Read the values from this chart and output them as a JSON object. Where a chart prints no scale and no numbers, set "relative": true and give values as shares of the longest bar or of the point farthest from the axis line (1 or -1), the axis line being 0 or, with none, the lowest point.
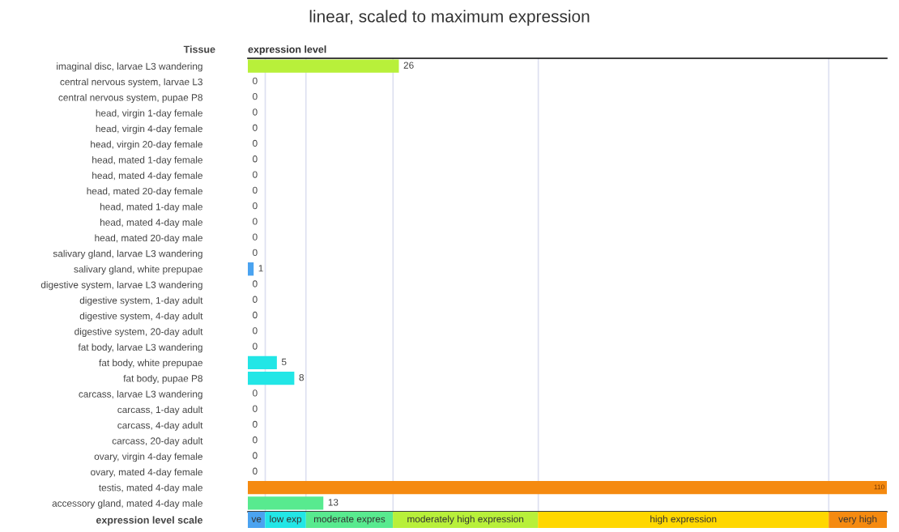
{
  "chart_data": [
    {
      "type": "bar",
      "orientation": "horizontal",
      "title": "linear, scaled to maximum expression",
      "annotations": [
        "Tissue",
        "expression level"
      ],
      "categories": [
        "imaginal disc, larvae L3 wandering",
        "central nervous system, larvae L3",
        "central nervous system, pupae P8",
        "head, virgin 1-day female",
        "head, virgin 4-day female",
        "head, virgin 20-day female",
        "head, mated 1-day female",
        "head, mated 4-day female",
        "head, mated 20-day female",
        "head, mated 1-day male",
        "head, mated 4-day male",
        "head, mated 20-day male",
        "salivary gland, larvae L3 wandering",
        "salivary gland, white prepupae",
        "digestive system, larvae L3 wandering",
        "digestive system, 1-day adult",
        "digestive system, 4-day adult",
        "digestive system, 20-day adult",
        "fat body, larvae L3 wandering",
        "fat body, white prepupae",
        "fat body, pupae P8",
        "carcass, larvae L3 wandering",
        "carcass, 1-day adult",
        "carcass, 4-day adult",
        "carcass, 20-day adult",
        "ovary, virgin 4-day female",
        "ovary, mated 4-day female",
        "testis, mated 4-day male",
        "accessory gland, mated 4-day male"
      ],
      "values": [
        26,
        0,
        0,
        0,
        0,
        0,
        0,
        0,
        0,
        0,
        0,
        0,
        0,
        1,
        0,
        0,
        0,
        0,
        0,
        5,
        8,
        0,
        0,
        0,
        0,
        0,
        0,
        110,
        13
      ],
      "colors": [
        "#b8f03a",
        "#4aa3f0",
        "#4aa3f0",
        "#4aa3f0",
        "#4aa3f0",
        "#4aa3f0",
        "#4aa3f0",
        "#4aa3f0",
        "#4aa3f0",
        "#4aa3f0",
        "#4aa3f0",
        "#4aa3f0",
        "#4aa3f0",
        "#4aa3f0",
        "#4aa3f0",
        "#4aa3f0",
        "#4aa3f0",
        "#4aa3f0",
        "#4aa3f0",
        "#22e6e6",
        "#22e6e6",
        "#4aa3f0",
        "#4aa3f0",
        "#4aa3f0",
        "#4aa3f0",
        "#4aa3f0",
        "#4aa3f0",
        "#f58a10",
        "#58ea8f"
      ],
      "xlim": [
        0,
        110
      ],
      "xticks": [
        {
          "value": 3,
          "label": null
        },
        {
          "value": 10,
          "label": null
        },
        {
          "value": 25,
          "label": null
        },
        {
          "value": 50,
          "label": null
        },
        {
          "value": 100,
          "label": null
        }
      ],
      "grid": "x",
      "tick_labels": "y",
      "data_labels": true
    },
    {
      "type": "bar",
      "orientation": "horizontal",
      "stacked": true,
      "categories": [
        "expression level scale"
      ],
      "relative": true,
      "tick_labels": "y",
      "series": [
        {
          "name": "ve",
          "color": "#4aa3f0",
          "values": [
            0.027
          ]
        },
        {
          "name": "low exp",
          "color": "#22e6e6",
          "values": [
            0.064
          ]
        },
        {
          "name": "moderate expres",
          "color": "#58ea8f",
          "values": [
            0.136
          ]
        },
        {
          "name": "moderately high expression",
          "color": "#b8f03a",
          "values": [
            0.227
          ]
        },
        {
          "name": "high expression",
          "color": "#ffd700",
          "values": [
            0.455
          ]
        },
        {
          "name": "very high",
          "color": "#f58a10",
          "values": [
            0.091
          ]
        }
      ]
    }
  ]
}
